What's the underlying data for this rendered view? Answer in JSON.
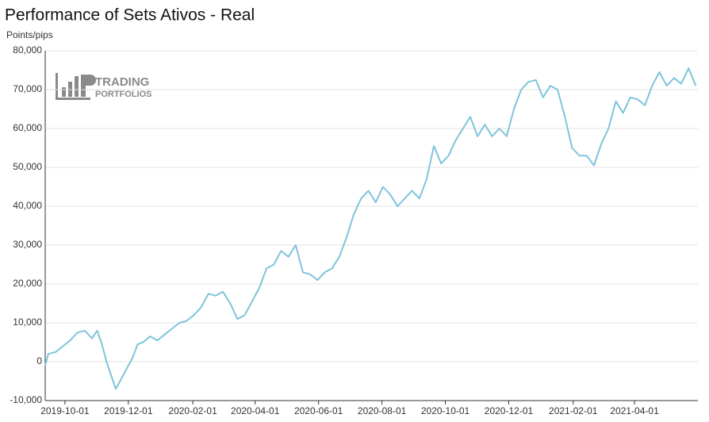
{
  "chart_data": {
    "type": "line",
    "title": "Performance of Sets Ativos - Real",
    "y_label": "Points/pips",
    "watermark": [
      "TRADING",
      "PORTFOLIOS"
    ],
    "x": [
      "2019-09-12",
      "2019-09-15",
      "2019-09-22",
      "2019-09-29",
      "2019-10-06",
      "2019-10-13",
      "2019-10-20",
      "2019-10-27",
      "2019-11-01",
      "2019-11-05",
      "2019-11-10",
      "2019-11-15",
      "2019-11-19",
      "2019-11-25",
      "2019-12-01",
      "2019-12-05",
      "2019-12-10",
      "2019-12-15",
      "2019-12-22",
      "2019-12-29",
      "2020-01-05",
      "2020-01-12",
      "2020-01-19",
      "2020-01-26",
      "2020-02-02",
      "2020-02-09",
      "2020-02-16",
      "2020-02-23",
      "2020-03-01",
      "2020-03-08",
      "2020-03-15",
      "2020-03-22",
      "2020-03-29",
      "2020-04-05",
      "2020-04-12",
      "2020-04-19",
      "2020-04-26",
      "2020-05-03",
      "2020-05-10",
      "2020-05-17",
      "2020-05-24",
      "2020-05-31",
      "2020-06-07",
      "2020-06-14",
      "2020-06-21",
      "2020-06-28",
      "2020-07-05",
      "2020-07-12",
      "2020-07-19",
      "2020-07-26",
      "2020-08-02",
      "2020-08-09",
      "2020-08-16",
      "2020-08-23",
      "2020-08-30",
      "2020-09-06",
      "2020-09-13",
      "2020-09-20",
      "2020-09-27",
      "2020-10-04",
      "2020-10-11",
      "2020-10-18",
      "2020-10-25",
      "2020-11-01",
      "2020-11-08",
      "2020-11-15",
      "2020-11-22",
      "2020-11-29",
      "2020-12-06",
      "2020-12-13",
      "2020-12-20",
      "2020-12-27",
      "2021-01-03",
      "2021-01-10",
      "2021-01-17",
      "2021-01-24",
      "2021-01-31",
      "2021-02-07",
      "2021-02-14",
      "2021-02-21",
      "2021-02-28",
      "2021-03-07",
      "2021-03-14",
      "2021-03-21",
      "2021-03-28",
      "2021-04-04",
      "2021-04-11",
      "2021-04-18",
      "2021-04-25",
      "2021-05-02",
      "2021-05-09",
      "2021-05-16",
      "2021-05-23",
      "2021-05-30"
    ],
    "series": [
      {
        "name": "Sets Ativos",
        "color": "#7ec4dc",
        "values": [
          -1000,
          2000,
          2500,
          4000,
          5500,
          7500,
          8000,
          6000,
          8000,
          5000,
          0,
          -4000,
          -7000,
          -4000,
          -1000,
          1000,
          4500,
          5000,
          6500,
          5500,
          7000,
          8500,
          10000,
          10500,
          12000,
          14000,
          17500,
          17000,
          18000,
          15000,
          11000,
          12000,
          15500,
          19000,
          24000,
          25000,
          28500,
          27000,
          30000,
          23000,
          22500,
          21000,
          23000,
          24000,
          27000,
          32000,
          38000,
          42000,
          44000,
          41000,
          45000,
          43000,
          40000,
          42000,
          44000,
          42000,
          47000,
          55500,
          51000,
          53000,
          57000,
          60000,
          63000,
          58000,
          61000,
          58000,
          60000,
          58000,
          65000,
          70000,
          72000,
          72500,
          68000,
          71000,
          70000,
          63000,
          55000,
          53000,
          53000,
          50500,
          56000,
          60000,
          67000,
          64000,
          68000,
          67500,
          66000,
          71000,
          74500,
          71000,
          73000,
          71500,
          75500,
          71000
        ]
      }
    ],
    "xlim": [
      "2019-09-12",
      "2021-06-01"
    ],
    "xticks": [
      "2019-10-01",
      "2019-12-01",
      "2020-02-01",
      "2020-04-01",
      "2020-06-01",
      "2020-08-01",
      "2020-10-01",
      "2020-12-01",
      "2021-02-01",
      "2021-04-01"
    ],
    "ylim": [
      -10000,
      80000
    ],
    "yticks": [
      {
        "value": -10000,
        "label": "-10,000"
      },
      0,
      {
        "value": 10000,
        "label": "10,000"
      },
      {
        "value": 20000,
        "label": "20,000"
      },
      {
        "value": 30000,
        "label": "30,000"
      },
      {
        "value": 40000,
        "label": "40,000"
      },
      {
        "value": 50000,
        "label": "50,000"
      },
      {
        "value": 60000,
        "label": "60,000"
      },
      {
        "value": 70000,
        "label": "70,000"
      },
      {
        "value": 80000,
        "label": "80,000"
      }
    ],
    "grid": true
  }
}
